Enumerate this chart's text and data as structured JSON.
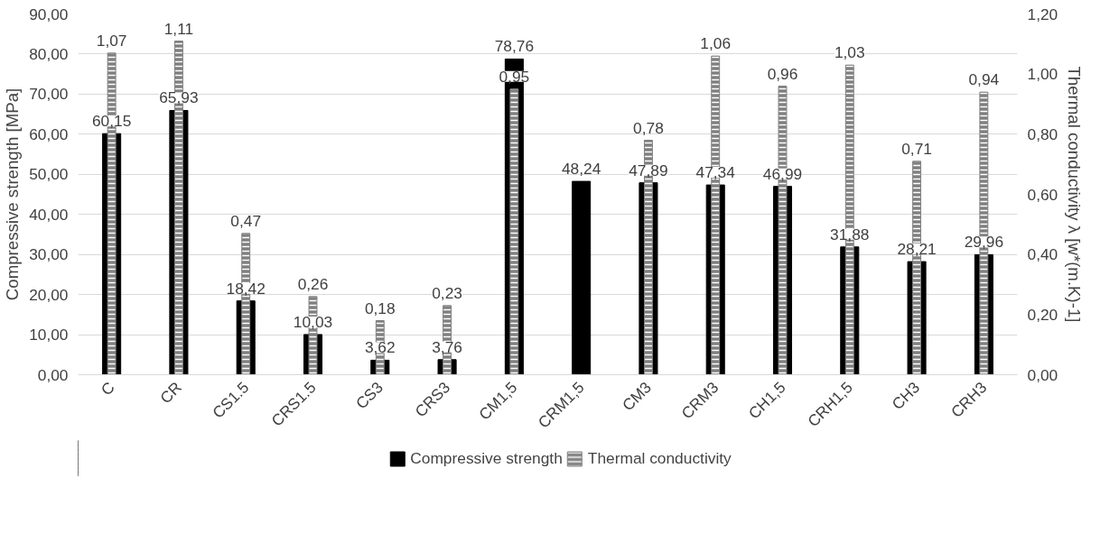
{
  "chart_data": {
    "type": "bar",
    "ylabel": "Compressive strength [MPa]",
    "y2label": "Thermal conductivity λ [w*(m.K)-1]",
    "categories": [
      "C",
      "CR",
      "CS1.5",
      "CRS1.5",
      "CS3",
      "CRS3",
      "CM1,5",
      "CRM1,5",
      "CM3",
      "CRM3",
      "CH1,5",
      "CRH1,5",
      "CH3",
      "CRH3"
    ],
    "series": [
      {
        "name": "Compressive strength",
        "color": "#000000",
        "values": [
          60.15,
          65.93,
          18.42,
          10.03,
          3.62,
          3.76,
          78.76,
          48.24,
          47.89,
          47.34,
          46.99,
          31.88,
          28.21,
          29.96
        ],
        "value_labels": [
          "60,15",
          "65,93",
          "18,42",
          "10,03",
          "3,62",
          "3,76",
          "78,76",
          "48,24",
          "47,89",
          "47,34",
          "46,99",
          "31,88",
          "28,21",
          "29,96"
        ]
      },
      {
        "name": "Thermal conductivity",
        "color": "#808080",
        "axis": "y2",
        "values": [
          1.07,
          1.11,
          0.47,
          0.26,
          0.18,
          0.23,
          0.95,
          null,
          0.78,
          1.06,
          0.96,
          1.03,
          0.71,
          0.94
        ],
        "value_labels": [
          "1,07",
          "1,11",
          "0,47",
          "0,26",
          "0,18",
          "0,23",
          "0,95",
          null,
          "0,78",
          "1,06",
          "0,96",
          "1,03",
          "0,71",
          "0,94"
        ]
      }
    ],
    "ylim": [
      0,
      90
    ],
    "yticks": [
      {
        "value": 0,
        "label": "0,00"
      },
      {
        "value": 10,
        "label": "10,00"
      },
      {
        "value": 20,
        "label": "20,00"
      },
      {
        "value": 30,
        "label": "30,00"
      },
      {
        "value": 40,
        "label": "40,00"
      },
      {
        "value": 50,
        "label": "50,00"
      },
      {
        "value": 60,
        "label": "60,00"
      },
      {
        "value": 70,
        "label": "70,00"
      },
      {
        "value": 80,
        "label": "80,00"
      },
      {
        "value": 90,
        "label": "90,00"
      }
    ],
    "y2lim": [
      0,
      1.2
    ],
    "y2ticks": [
      {
        "value": 0,
        "label": "0,00"
      },
      {
        "value": 0.2,
        "label": "0,20"
      },
      {
        "value": 0.4,
        "label": "0,40"
      },
      {
        "value": 0.6,
        "label": "0,60"
      },
      {
        "value": 0.8,
        "label": "0,80"
      },
      {
        "value": 1.0,
        "label": "1,00"
      },
      {
        "value": 1.2,
        "label": "1,20"
      }
    ],
    "grid": "y",
    "legend": "bottom"
  }
}
